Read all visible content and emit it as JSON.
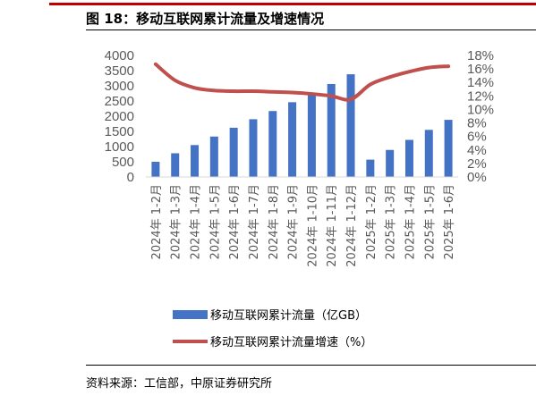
{
  "header": {
    "title": "图 18：移动互联网累计流量及增速情况"
  },
  "footer": {
    "source": "资料来源：工信部，中原证券研究所"
  },
  "colors": {
    "bar": "#4472c4",
    "line": "#c0504d",
    "accent_rule": "#c00000"
  },
  "chart_data": {
    "type": "bar",
    "categories": [
      "2024年 1-2月",
      "2024年 1-3月",
      "2024年 1-4月",
      "2024年 1-5月",
      "2024年 1-6月",
      "2024年 1-7月",
      "2024年 1-8月",
      "2024年 1-9月",
      "2024年 1-10月",
      "2024年 1-11月",
      "2024年 1-12月",
      "2025年 1-2月",
      "2025年 1-3月",
      "2025年 1-4月",
      "2025年 1-5月",
      "2025年 1-6月"
    ],
    "series": [
      {
        "name": "移动互联网累计流量（亿GB）",
        "type": "bar",
        "axis": "left",
        "values": [
          500,
          780,
          1050,
          1330,
          1620,
          1900,
          2170,
          2460,
          2740,
          3060,
          3380,
          570,
          890,
          1220,
          1550,
          1880
        ]
      },
      {
        "name": "移动互联网累计流量增速（%）",
        "type": "line",
        "axis": "right",
        "values": [
          16.7,
          14.3,
          13.2,
          12.8,
          12.7,
          12.7,
          12.6,
          12.5,
          12.3,
          12.0,
          11.5,
          13.7,
          14.8,
          15.6,
          16.2,
          16.4
        ]
      }
    ],
    "y_left": {
      "ylim": [
        0,
        4000
      ],
      "ticks": [
        "4000",
        "3500",
        "3000",
        "2500",
        "2000",
        "1500",
        "1000",
        "500",
        "0"
      ]
    },
    "y_right": {
      "ylim": [
        0,
        18
      ],
      "ticks": [
        "18%",
        "16%",
        "14%",
        "12%",
        "10%",
        "8%",
        "6%",
        "4%",
        "2%",
        "0%"
      ]
    },
    "grid": false,
    "legend_placement": "bottom"
  }
}
